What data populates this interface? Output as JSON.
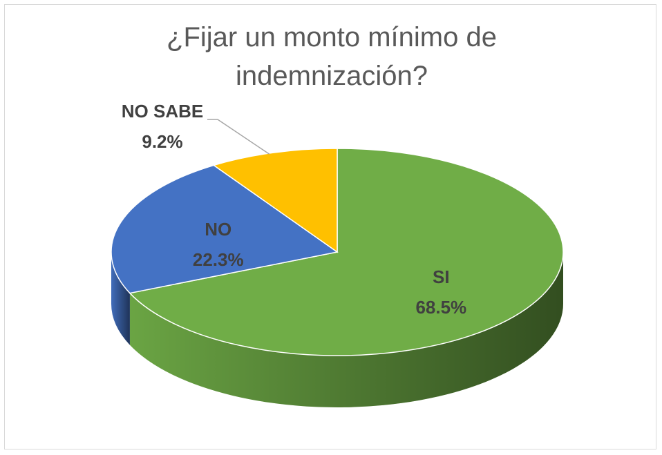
{
  "chart_data": {
    "type": "pie",
    "title": "¿Fijar un monto mínimo de indemnización?",
    "categories": [
      "SI",
      "NO",
      "NO SABE"
    ],
    "values": [
      68.5,
      22.3,
      9.2
    ],
    "value_labels": [
      "68.5%",
      "22.3%",
      "9.2%"
    ],
    "colors": [
      "#70ad47",
      "#4472c4",
      "#ffc000"
    ]
  }
}
